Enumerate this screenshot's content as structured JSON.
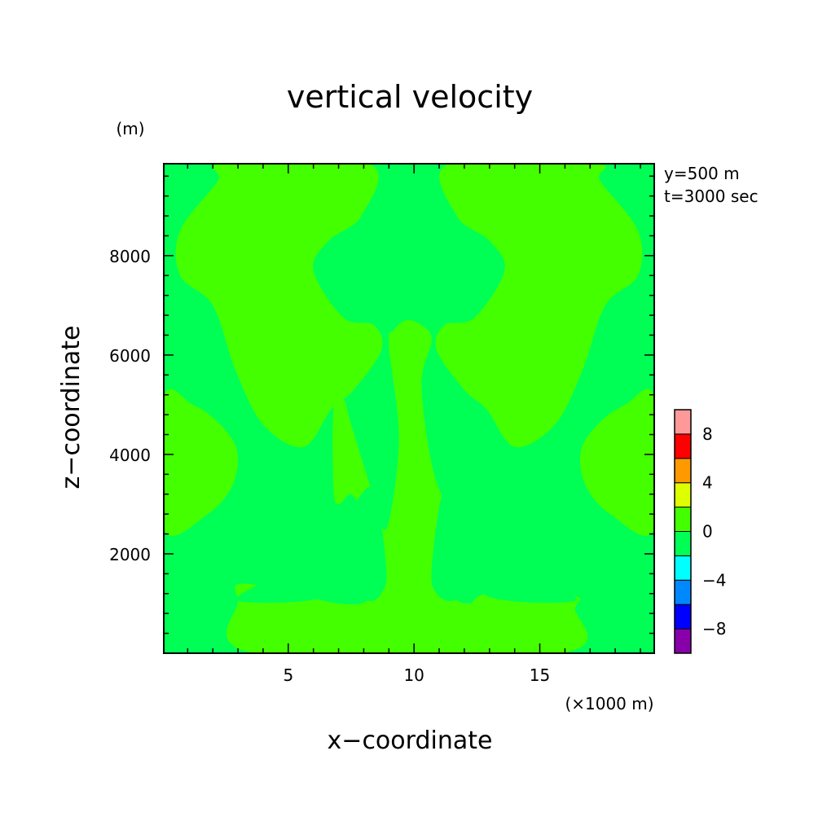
{
  "chart_data": {
    "type": "heatmap",
    "title": "vertical velocity",
    "xlabel": "x−coordinate",
    "ylabel": "z−coordinate",
    "x_unit": "(×1000 m)",
    "y_unit": "(m)",
    "annotations": [
      "y=500 m",
      "t=3000 sec"
    ],
    "x_range": [
      0.05,
      19.55
    ],
    "y_range": [
      0,
      9850
    ],
    "x_ticks": [
      5,
      10,
      15
    ],
    "x_tick_labels": [
      "5",
      "10",
      "15"
    ],
    "y_ticks": [
      2000,
      4000,
      6000,
      8000
    ],
    "y_tick_labels": [
      "2000",
      "4000",
      "6000",
      "8000"
    ],
    "colorbar": {
      "levels": [
        -10,
        -8,
        -6,
        -4,
        -2,
        0,
        2,
        4,
        6,
        8,
        10
      ],
      "colors": [
        "#8800aa",
        "#0000ff",
        "#0088ff",
        "#00ffff",
        "#00ff55",
        "#44ff00",
        "#ddff00",
        "#ff9900",
        "#ff0000",
        "#ff9999"
      ],
      "tick_labels": [
        {
          "value": -8,
          "label": "−8"
        },
        {
          "value": -4,
          "label": "−4"
        },
        {
          "value": 0,
          "label": "0"
        },
        {
          "value": 4,
          "label": "4"
        },
        {
          "value": 8,
          "label": "8"
        }
      ]
    },
    "regions": [
      {
        "band": "0 to 2",
        "color": "#44ff00",
        "description": "upper left lobe",
        "points": [
          [
            2.4,
            9850
          ],
          [
            8.2,
            9850
          ],
          [
            7.9,
            8800
          ],
          [
            6.6,
            8300
          ],
          [
            6.0,
            7700
          ],
          [
            7.2,
            6750
          ],
          [
            8.4,
            6600
          ],
          [
            8.7,
            6100
          ],
          [
            7.6,
            5300
          ],
          [
            6.7,
            4900
          ],
          [
            5.6,
            4150
          ],
          [
            4.0,
            4600
          ],
          [
            2.9,
            5700
          ],
          [
            2.0,
            7000
          ],
          [
            0.7,
            7600
          ],
          [
            0.7,
            8500
          ],
          [
            2.2,
            9500
          ]
        ]
      },
      {
        "band": "0 to 2",
        "color": "#44ff00",
        "description": "upper right lobe",
        "points": [
          [
            17.2,
            9850
          ],
          [
            11.4,
            9850
          ],
          [
            11.7,
            8800
          ],
          [
            13.0,
            8300
          ],
          [
            13.6,
            7700
          ],
          [
            12.4,
            6750
          ],
          [
            11.2,
            6600
          ],
          [
            10.9,
            6100
          ],
          [
            12.0,
            5300
          ],
          [
            12.9,
            4900
          ],
          [
            14.0,
            4150
          ],
          [
            15.6,
            4600
          ],
          [
            16.7,
            5700
          ],
          [
            17.6,
            7000
          ],
          [
            18.9,
            7600
          ],
          [
            18.9,
            8500
          ],
          [
            17.4,
            9500
          ]
        ]
      },
      {
        "band": "0 to 2",
        "color": "#44ff00",
        "description": "left mid lobe",
        "points": [
          [
            0.05,
            5150
          ],
          [
            1.2,
            5000
          ],
          [
            2.2,
            4650
          ],
          [
            2.95,
            4100
          ],
          [
            2.8,
            3400
          ],
          [
            1.8,
            2800
          ],
          [
            0.05,
            2500
          ]
        ]
      },
      {
        "band": "0 to 2",
        "color": "#44ff00",
        "description": "right mid lobe",
        "points": [
          [
            19.55,
            5150
          ],
          [
            18.4,
            5000
          ],
          [
            17.4,
            4650
          ],
          [
            16.65,
            4100
          ],
          [
            16.8,
            3400
          ],
          [
            17.8,
            2800
          ],
          [
            19.55,
            2500
          ]
        ]
      },
      {
        "band": "0 to 2",
        "color": "#44ff00",
        "description": "central column",
        "points": [
          [
            9.2,
            6500
          ],
          [
            9.7,
            6700
          ],
          [
            10.3,
            6600
          ],
          [
            10.7,
            6300
          ],
          [
            10.3,
            5400
          ],
          [
            10.8,
            3600
          ],
          [
            11.9,
            2200
          ],
          [
            11.6,
            1200
          ],
          [
            12.2,
            1000
          ],
          [
            13.0,
            1200
          ],
          [
            16.3,
            1150
          ],
          [
            16.4,
            900
          ],
          [
            15.8,
            0
          ],
          [
            3.7,
            0
          ],
          [
            3.0,
            1050
          ],
          [
            3.3,
            1400
          ],
          [
            7.0,
            1000
          ],
          [
            8.2,
            1100
          ],
          [
            7.7,
            1600
          ],
          [
            7.8,
            2800
          ],
          [
            7.5,
            3200
          ],
          [
            7.0,
            3000
          ],
          [
            6.8,
            3300
          ],
          [
            6.8,
            4900
          ],
          [
            7.2,
            5100
          ],
          [
            7.5,
            4600
          ],
          [
            8.3,
            3300
          ],
          [
            8.9,
            2500
          ],
          [
            9.4,
            4300
          ],
          [
            9.0,
            6200
          ]
        ]
      },
      {
        "band": "-2 to 0",
        "color": "#00ff55",
        "description": "left channel",
        "points": [
          [
            7.3,
            2600
          ],
          [
            7.5,
            2000
          ],
          [
            7.4,
            1300
          ],
          [
            8.2,
            1050
          ],
          [
            8.7,
            1200
          ],
          [
            8.9,
            1700
          ],
          [
            8.4,
            3300
          ],
          [
            7.5,
            2900
          ]
        ]
      },
      {
        "band": "-2 to 0",
        "color": "#00ff55",
        "description": "right channel",
        "points": [
          [
            12.3,
            2600
          ],
          [
            12.1,
            2000
          ],
          [
            12.2,
            1300
          ],
          [
            11.5,
            1050
          ],
          [
            10.9,
            1200
          ],
          [
            10.7,
            1700
          ],
          [
            11.2,
            3300
          ],
          [
            12.1,
            2900
          ]
        ]
      },
      {
        "band": "-2 to 0",
        "color": "#00ff55",
        "description": "left ring around lower lobe",
        "points": [
          [
            3.0,
            1050
          ],
          [
            4.3,
            1500
          ],
          [
            5.7,
            1750
          ],
          [
            6.7,
            2300
          ],
          [
            7.4,
            2600
          ],
          [
            7.2,
            2000
          ],
          [
            6.6,
            1150
          ]
        ]
      },
      {
        "band": "-2 to 0",
        "color": "#00ff55",
        "description": "right ring around lower lobe",
        "points": [
          [
            16.4,
            1050
          ],
          [
            15.1,
            1500
          ],
          [
            13.7,
            1750
          ],
          [
            12.7,
            2300
          ],
          [
            12.0,
            2600
          ],
          [
            12.3,
            2000
          ],
          [
            12.9,
            1150
          ]
        ]
      }
    ]
  }
}
